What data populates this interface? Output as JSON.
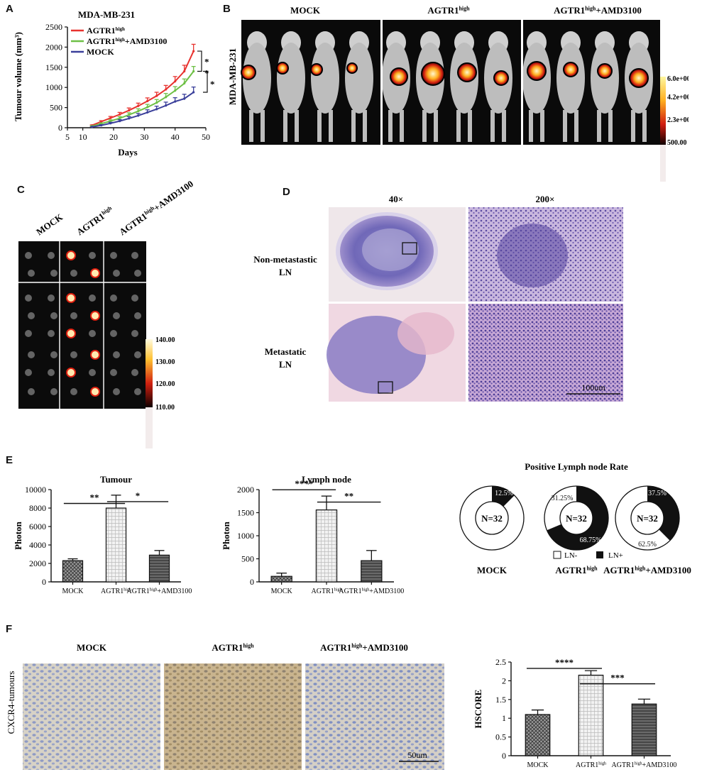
{
  "panelA": {
    "label": "A",
    "title": "MDA-MB-231",
    "chart_data": {
      "type": "line",
      "xlabel": "Days",
      "ylabel": "Tumour volume (mm³)",
      "xlim": [
        5,
        50
      ],
      "ylim": [
        0,
        2500
      ],
      "xticks": [
        "5",
        "10",
        "20",
        "30",
        "40",
        "50"
      ],
      "yticks": [
        "0",
        "500",
        "1000",
        "1500",
        "2000",
        "2500"
      ],
      "legend_position": "top-left",
      "x": [
        13,
        16,
        19,
        22,
        25,
        28,
        31,
        34,
        37,
        40,
        43,
        46
      ],
      "series": [
        {
          "name": "AGTR1",
          "sup": "high",
          "color": "#e8332f",
          "values": [
            60,
            150,
            240,
            330,
            430,
            540,
            660,
            790,
            950,
            1150,
            1400,
            1900
          ],
          "errors": [
            10,
            25,
            40,
            50,
            60,
            70,
            80,
            90,
            100,
            120,
            150,
            170
          ]
        },
        {
          "name": "AGTR1",
          "sup": "high",
          "suffix": "+AMD3100",
          "color": "#6ec046",
          "values": [
            40,
            100,
            165,
            235,
            320,
            410,
            510,
            620,
            760,
            920,
            1100,
            1400
          ],
          "errors": [
            10,
            20,
            30,
            40,
            50,
            60,
            70,
            80,
            90,
            100,
            110,
            120
          ]
        },
        {
          "name": "MOCK",
          "color": "#3a3f9a",
          "values": [
            20,
            60,
            110,
            165,
            230,
            300,
            380,
            460,
            550,
            650,
            720,
            880
          ],
          "errors": [
            5,
            15,
            25,
            35,
            45,
            55,
            65,
            75,
            85,
            95,
            110,
            130
          ]
        }
      ],
      "annotations": [
        "*",
        "*",
        "*"
      ]
    }
  },
  "panelB": {
    "label": "B",
    "ylabel": "MDA-MB-231",
    "groups": [
      {
        "name": "MOCK"
      },
      {
        "name": "AGTR1",
        "sup": "high"
      },
      {
        "name": "AGTR1",
        "sup": "high",
        "suffix": "+AMD3100"
      }
    ],
    "colorbar": [
      "6.0e+003",
      "4.2e+003",
      "2.3e+003",
      "500.00"
    ]
  },
  "panelC": {
    "label": "C",
    "groups": [
      {
        "name": "MOCK"
      },
      {
        "name": "AGTR1",
        "sup": "high"
      },
      {
        "name": "AGTR1",
        "sup": "high",
        "suffix": "+AMD3100"
      }
    ],
    "colorbar": [
      "140.00",
      "130.00",
      "120.00",
      "110.00"
    ]
  },
  "panelD": {
    "label": "D",
    "magnifications": [
      "40×",
      "200×"
    ],
    "rows": [
      {
        "line1": "Non-metastastic",
        "line2": "LN"
      },
      {
        "line1": "Metastatic",
        "line2": "LN"
      }
    ],
    "scalebar": "100um"
  },
  "panelE": {
    "label": "E",
    "chart_data": [
      {
        "type": "bar",
        "title": "Tumour",
        "ylabel": "Photon",
        "ylim": [
          0,
          10000
        ],
        "yticks": [
          "0",
          "2000",
          "4000",
          "6000",
          "8000",
          "10000"
        ],
        "categories": [
          {
            "name": "MOCK"
          },
          {
            "name": "AGTR1",
            "sup": "high"
          },
          {
            "name": "AGTR1",
            "sup": "high",
            "suffix": "+AMD3100"
          }
        ],
        "values": [
          2300,
          8000,
          2900
        ],
        "errors": [
          200,
          1400,
          500
        ],
        "significance": [
          "**",
          "*"
        ]
      },
      {
        "type": "bar",
        "title": "Lymph node",
        "ylabel": "Photon",
        "ylim": [
          0,
          2000
        ],
        "yticks": [
          "0",
          "500",
          "1000",
          "1500",
          "2000"
        ],
        "categories": [
          {
            "name": "MOCK"
          },
          {
            "name": "AGTR1",
            "sup": "high"
          },
          {
            "name": "AGTR1",
            "sup": "high",
            "suffix": "+AMD3100"
          }
        ],
        "values": [
          120,
          1560,
          460
        ],
        "errors": [
          70,
          300,
          220
        ],
        "significance": [
          "****",
          "**"
        ]
      },
      {
        "type": "pie",
        "title": "Positive Lymph node Rate",
        "center_label": "N=32",
        "legend": [
          "LN-",
          "LN+"
        ],
        "groups": [
          {
            "name": "MOCK",
            "ln_pos": 12.5,
            "ln_neg": 87.5,
            "labels": [
              "12.5%"
            ]
          },
          {
            "name": "AGTR1",
            "sup": "high",
            "ln_pos": 68.75,
            "ln_neg": 31.25,
            "labels": [
              "31.25%",
              "68.75%"
            ]
          },
          {
            "name": "AGTR1",
            "sup": "high",
            "suffix": "+AMD3100",
            "ln_pos": 37.5,
            "ln_neg": 62.5,
            "labels": [
              "37.5%",
              "62.5%"
            ]
          }
        ]
      }
    ]
  },
  "panelF": {
    "label": "F",
    "ylabel": "CXCR4-tumours",
    "groups": [
      {
        "name": "MOCK"
      },
      {
        "name": "AGTR1",
        "sup": "high"
      },
      {
        "name": "AGTR1",
        "sup": "high",
        "suffix": "+AMD3100"
      }
    ],
    "scalebar": "50um",
    "chart_data": {
      "type": "bar",
      "ylabel": "HSCORE",
      "ylim": [
        0,
        2.5
      ],
      "yticks": [
        "0",
        "0.5",
        "1",
        "1.5",
        "2",
        "2.5"
      ],
      "categories": [
        {
          "name": "MOCK"
        },
        {
          "name": "AGTR1",
          "sup": "high"
        },
        {
          "name": "AGTR1",
          "sup": "high",
          "suffix": "+AMD3100"
        }
      ],
      "values": [
        1.1,
        2.15,
        1.38
      ],
      "errors": [
        0.12,
        0.12,
        0.13
      ],
      "significance": [
        "****",
        "***"
      ]
    }
  }
}
